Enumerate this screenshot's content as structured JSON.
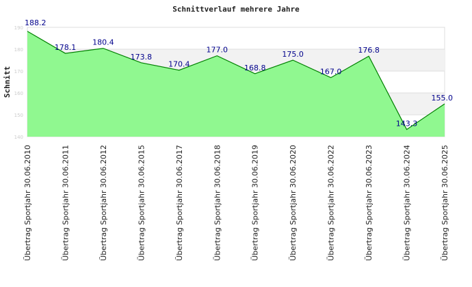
{
  "chart_data": {
    "type": "area",
    "title": "Schnittverlauf mehrere Jahre",
    "xlabel": "",
    "ylabel": "Schnitt",
    "ylim": [
      140,
      190
    ],
    "yticks": [
      "140",
      "150",
      "160",
      "170",
      "180",
      "190"
    ],
    "categories": [
      "Übertrag Sportjahr 30.06.2010",
      "Übertrag Sportjahr 30.06.2011",
      "Übertrag Sportjahr 30.06.2012",
      "Übertrag Sportjahr 30.06.2015",
      "Übertrag Sportjahr 30.06.2017",
      "Übertrag Sportjahr 30.06.2018",
      "Übertrag Sportjahr 30.06.2019",
      "Übertrag Sportjahr 30.06.2020",
      "Übertrag Sportjahr 30.06.2022",
      "Übertrag Sportjahr 30.06.2023",
      "Übertrag Sportjahr 30.06.2024",
      "Übertrag Sportjahr 30.06.2025"
    ],
    "values": [
      188.2,
      178.1,
      180.4,
      173.8,
      170.4,
      177.0,
      168.8,
      175.0,
      167.0,
      176.8,
      143.3,
      155.0
    ],
    "labels": [
      "188.2",
      "178.1",
      "180.4",
      "173.8",
      "170.4",
      "177.0",
      "168.8",
      "175.0",
      "167.0",
      "176.8",
      "143.3",
      "155.0"
    ],
    "colors": {
      "fill": "#90f890",
      "line": "#008000",
      "label": "#00008b",
      "band": "#f2f2f2"
    }
  }
}
